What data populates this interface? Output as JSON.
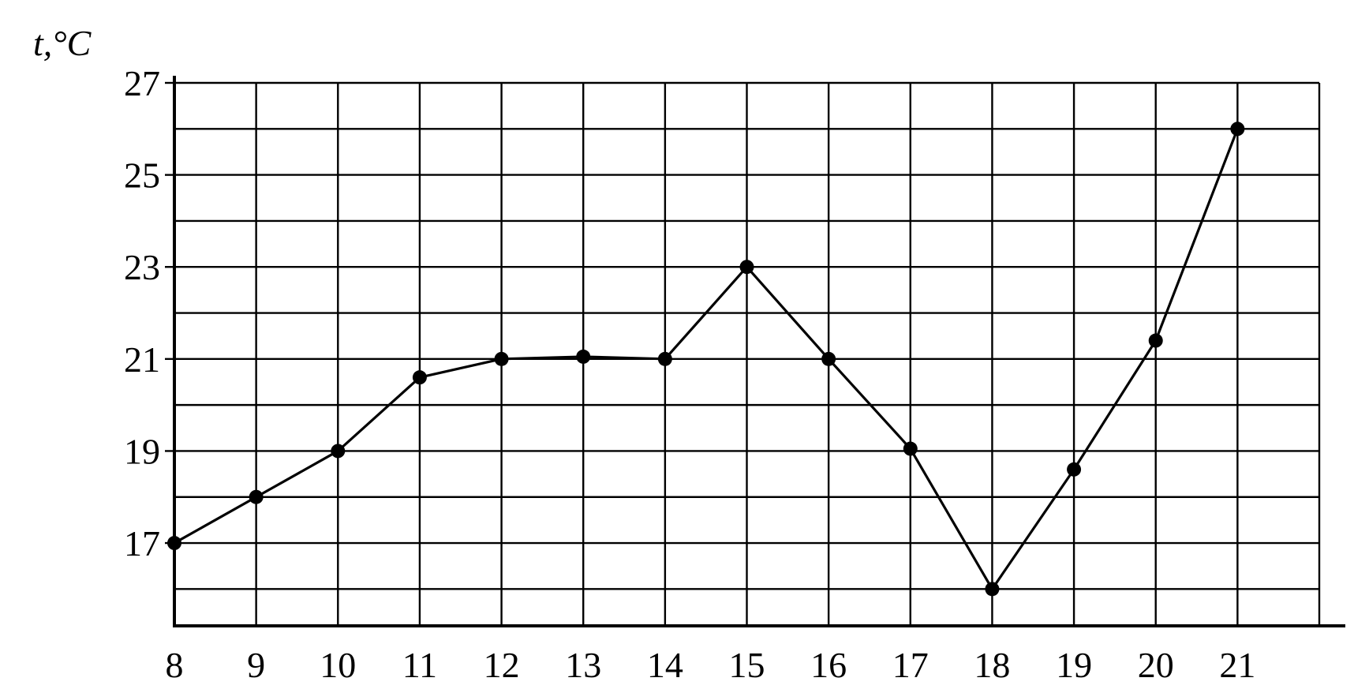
{
  "chart_data": {
    "type": "line",
    "ylabel": "t,°C",
    "xlabel": "",
    "x": [
      8,
      9,
      10,
      11,
      12,
      13,
      14,
      15,
      16,
      17,
      18,
      19,
      20,
      21
    ],
    "y": [
      17,
      18,
      19,
      20.6,
      21,
      21.05,
      21,
      23,
      21,
      19.05,
      16,
      18.6,
      21.4,
      26
    ],
    "xlim": [
      8,
      22
    ],
    "ylim": [
      15.2,
      27
    ],
    "x_ticks": [
      "8",
      "9",
      "10",
      "11",
      "12",
      "13",
      "14",
      "15",
      "16",
      "17",
      "18",
      "19",
      "20",
      "21"
    ],
    "y_ticks": [
      "17",
      "19",
      "21",
      "23",
      "25",
      "27"
    ],
    "grid": true,
    "colors": {
      "line": "#000000",
      "grid": "#000000"
    }
  }
}
